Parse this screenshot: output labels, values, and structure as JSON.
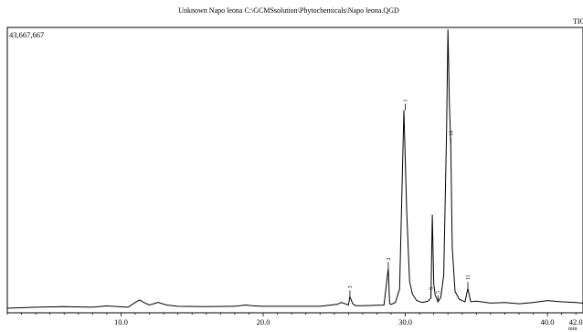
{
  "chart_data": {
    "type": "line",
    "title": "Unknown Napo leona C:\\GCMSsolution\\Phytochemicals\\Napo leona.QGD",
    "trace_label": "TIC",
    "max_intensity_label": "43,667,667",
    "x_unit": "min",
    "xlim": [
      2.0,
      42.5
    ],
    "ylim": [
      0,
      43667667
    ],
    "x_ticks": [
      10.0,
      20.0,
      30.0,
      40.0,
      42.0
    ],
    "x_tick_labels": [
      "10.0",
      "20.0",
      "30.0",
      "40.0",
      "42.0"
    ],
    "series": [
      {
        "x": [
          2.0,
          4.0,
          6.0,
          8.0,
          9.0,
          10.5,
          11.0,
          11.3,
          11.6,
          12.0,
          12.6,
          13.2,
          14.0,
          16.0,
          18.0,
          18.8,
          19.2,
          20.0,
          22.0,
          24.0,
          25.2,
          25.5,
          26.0,
          26.1,
          26.3,
          26.5,
          27.0,
          28.5,
          28.8,
          28.9,
          29.0,
          29.3,
          29.6,
          29.9,
          30.1,
          30.3,
          30.5,
          30.8,
          31.2,
          31.6,
          31.8,
          31.9,
          32.0,
          32.1,
          32.3,
          32.5,
          32.7,
          32.9,
          33.0,
          33.1,
          33.2,
          33.3,
          33.5,
          33.8,
          34.2,
          34.4,
          34.6,
          35.0,
          36.0,
          37.0,
          38.0,
          39.0,
          40.0,
          41.0,
          42.0,
          42.5
        ],
        "y": [
          0,
          150000,
          250000,
          150000,
          350000,
          150000,
          900000,
          1300000,
          900000,
          500000,
          900000,
          500000,
          300000,
          250000,
          300000,
          500000,
          400000,
          300000,
          300000,
          300000,
          600000,
          900000,
          500000,
          1800000,
          700000,
          400000,
          400000,
          500000,
          6200000,
          700000,
          600000,
          900000,
          3000000,
          30900000,
          15000000,
          4200000,
          2200000,
          1200000,
          900000,
          1100000,
          1600000,
          14600000,
          3800000,
          2100000,
          1000000,
          1700000,
          5200000,
          27700000,
          43500000,
          32000000,
          25600000,
          9500000,
          2600000,
          1400000,
          1000000,
          3100000,
          1000000,
          1100000,
          800000,
          900000,
          700000,
          900000,
          1200000,
          1000000,
          900000,
          800000
        ]
      }
    ],
    "peak_labels": [
      {
        "label": "1",
        "x": 30.0
      },
      {
        "label": "2",
        "x": 28.8
      },
      {
        "label": "3",
        "x": 26.1
      },
      {
        "label": "5",
        "x": 32.3
      },
      {
        "label": "6",
        "x": 31.8
      },
      {
        "label": "10",
        "x": 33.2
      },
      {
        "label": "11",
        "x": 34.4
      }
    ]
  }
}
